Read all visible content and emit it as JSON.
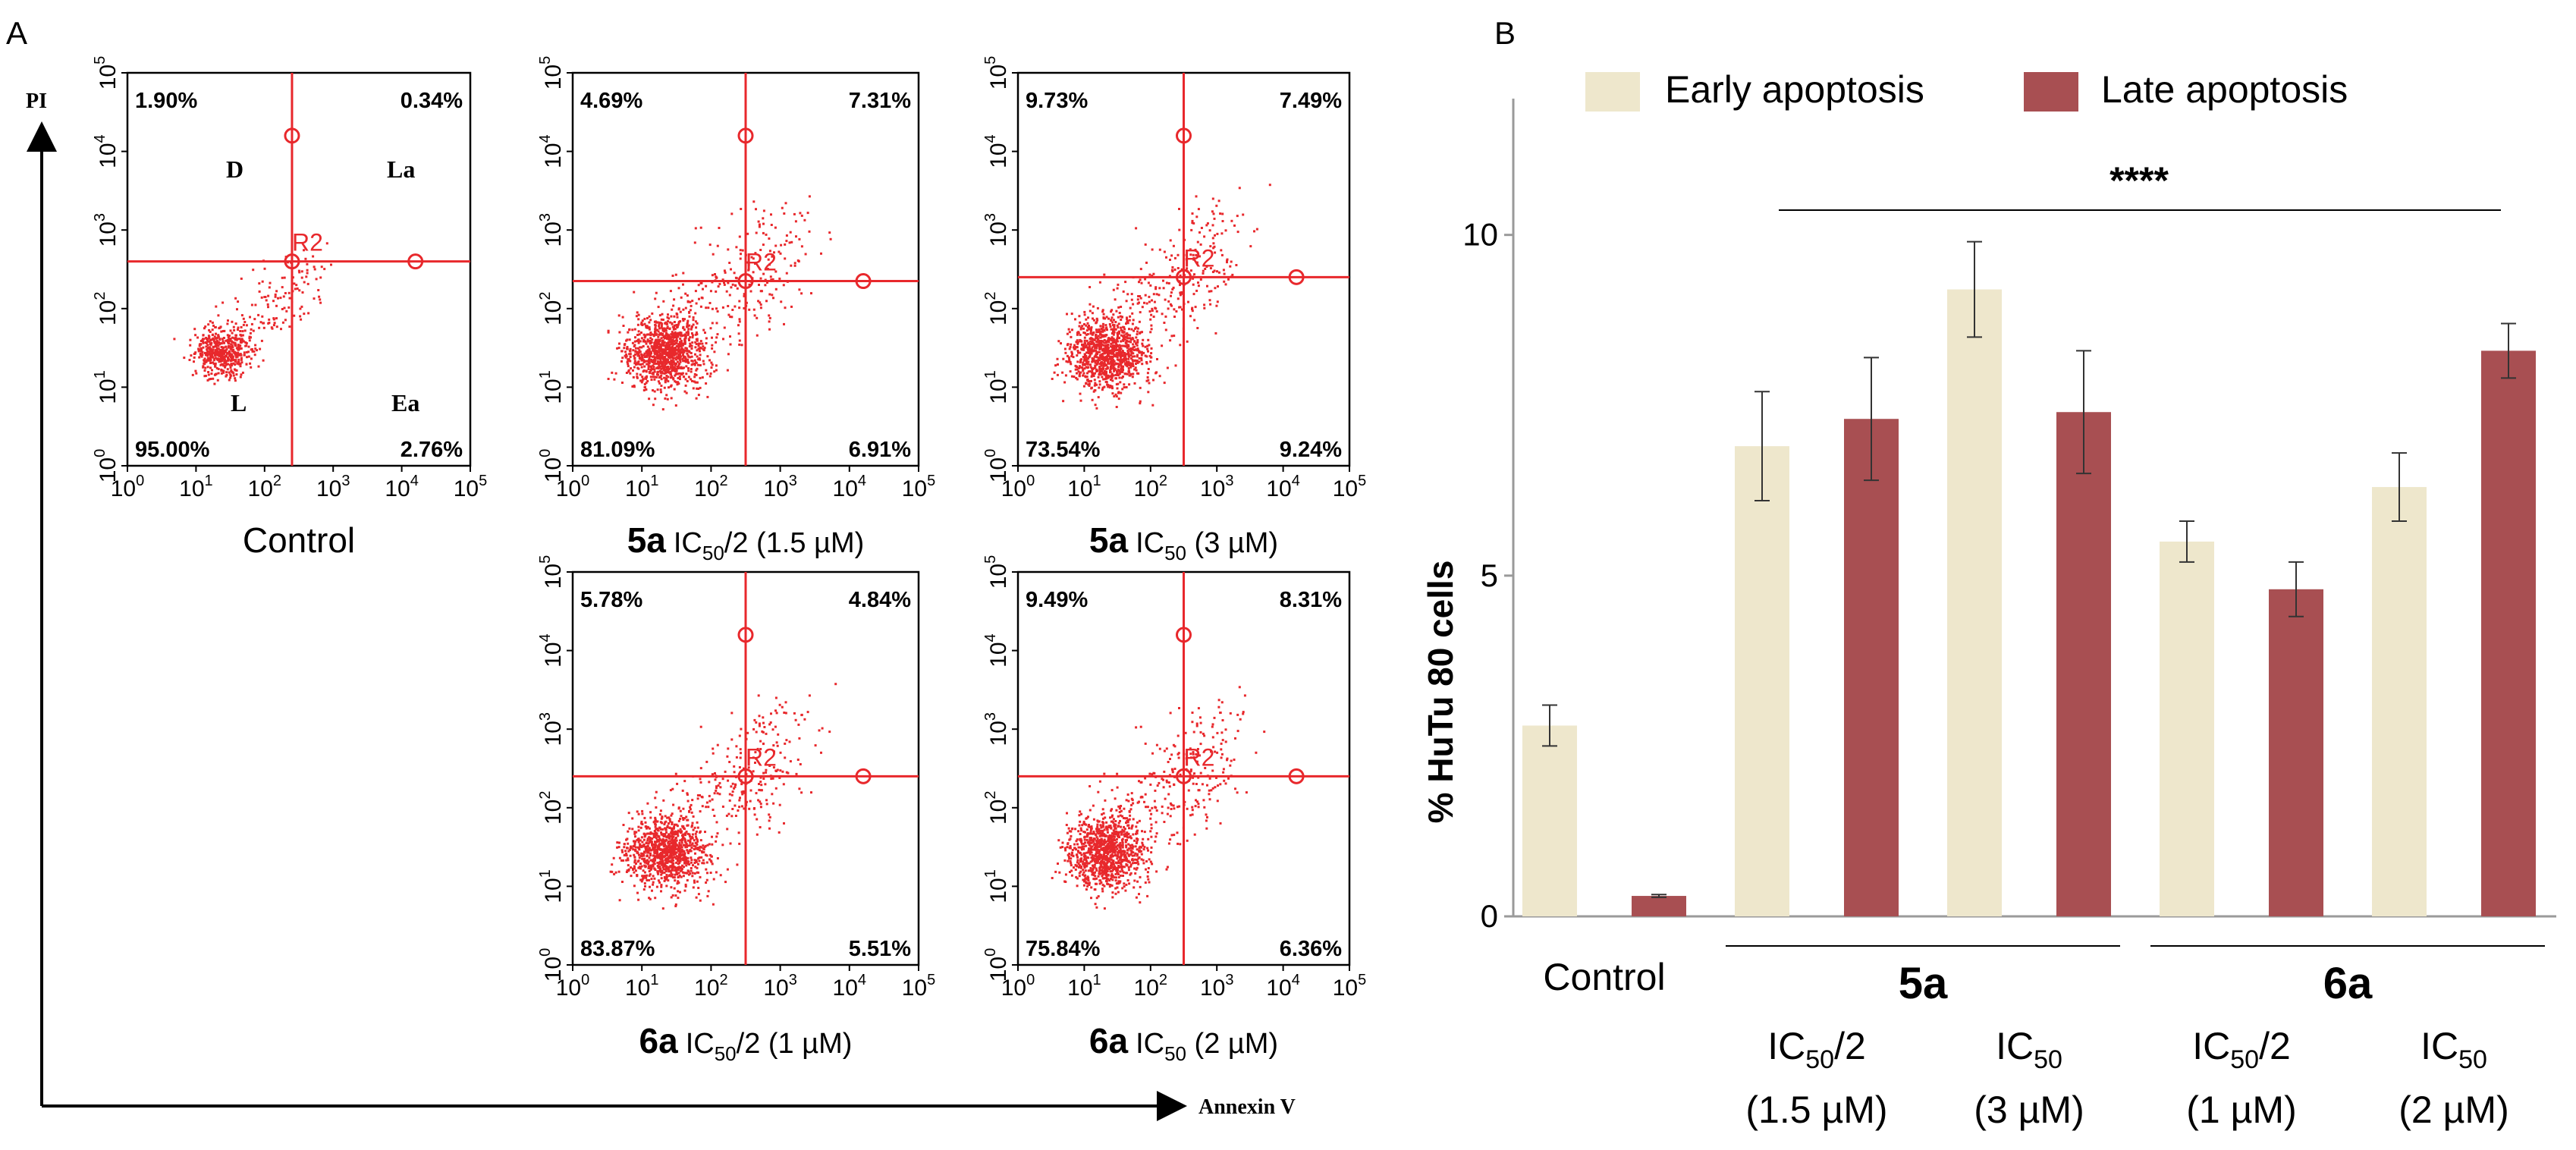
{
  "chart_data": [
    {
      "type": "scatter",
      "panel_label": "A",
      "x_axis_title": "Annexin V",
      "y_axis_title": "PI",
      "axis_scale": "log",
      "tick_labels": [
        "10",
        "10",
        "10",
        "10",
        "10",
        "10"
      ],
      "tick_exponents": [
        "0",
        "1",
        "2",
        "3",
        "4",
        "5"
      ],
      "gate_label": "R2",
      "quadrant_names": {
        "upper_left": "D",
        "upper_right": "La",
        "lower_left": "L",
        "lower_right": "Ea"
      },
      "plots": [
        {
          "title": "Control",
          "cross_x": 2.4,
          "cross_y": 2.6,
          "percent": {
            "upper_left": "1.90%",
            "upper_right": "0.34%",
            "lower_left": "95.00%",
            "lower_right": "2.76%"
          }
        },
        {
          "title_bold": "5a",
          "title_rest": "IC",
          "title_sub": "50",
          "title_tail": "/2 (1.5 µM)",
          "cross_x": 2.5,
          "cross_y": 2.35,
          "percent": {
            "upper_left": "4.69%",
            "upper_right": "7.31%",
            "lower_left": "81.09%",
            "lower_right": "6.91%"
          }
        },
        {
          "title_bold": "5a",
          "title_rest": "IC",
          "title_sub": "50",
          "title_tail": " (3 µM)",
          "cross_x": 2.5,
          "cross_y": 2.4,
          "percent": {
            "upper_left": "9.73%",
            "upper_right": "7.49%",
            "lower_left": "73.54%",
            "lower_right": "9.24%"
          }
        },
        {
          "title_bold": "6a",
          "title_rest": "IC",
          "title_sub": "50",
          "title_tail": "/2 (1 µM)",
          "cross_x": 2.5,
          "cross_y": 2.4,
          "percent": {
            "upper_left": "5.78%",
            "upper_right": "4.84%",
            "lower_left": "83.87%",
            "lower_right": "5.51%"
          }
        },
        {
          "title_bold": "6a",
          "title_rest": "IC",
          "title_sub": "50",
          "title_tail": " (2 µM)",
          "cross_x": 2.5,
          "cross_y": 2.4,
          "percent": {
            "upper_left": "9.49%",
            "upper_right": "8.31%",
            "lower_left": "75.84%",
            "lower_right": "6.36%"
          }
        }
      ]
    },
    {
      "type": "bar",
      "panel_label": "B",
      "ylabel": "% HuTu 80 cells",
      "ylim": [
        0,
        12
      ],
      "yticks": [
        "0",
        "5",
        "10"
      ],
      "legend": {
        "position": "top",
        "entries": [
          {
            "name": "Early apoptosis",
            "color": "#EEE7CC"
          },
          {
            "name": "Late apoptosis",
            "color": "#A84F52"
          }
        ]
      },
      "significance": "****",
      "categories": [
        "Control",
        "IC50/2 (1.5 µM)",
        "IC50 (3 µM)",
        "IC50/2 (1 µM)",
        "IC50 (2 µM)"
      ],
      "category_labels": [
        {
          "line1": "Control",
          "line2": ""
        },
        {
          "line1": "IC",
          "sub": "50",
          "tail": "/2",
          "line2": "(1.5 µM)"
        },
        {
          "line1": "IC",
          "sub": "50",
          "tail": "",
          "line2": "(3 µM)"
        },
        {
          "line1": "IC",
          "sub": "50",
          "tail": "/2",
          "line2": "(1 µM)"
        },
        {
          "line1": "IC",
          "sub": "50",
          "tail": "",
          "line2": "(2 µM)"
        }
      ],
      "groups": [
        {
          "name": "5a",
          "categories": [
            1,
            2
          ]
        },
        {
          "name": "6a",
          "categories": [
            3,
            4
          ]
        }
      ],
      "series": [
        {
          "name": "Early apoptosis",
          "color": "#EEE7CC",
          "values": [
            2.8,
            6.9,
            9.2,
            5.5,
            6.3
          ],
          "errors": [
            0.3,
            0.8,
            0.7,
            0.3,
            0.5
          ]
        },
        {
          "name": "Late apoptosis",
          "color": "#A84F52",
          "values": [
            0.3,
            7.3,
            7.4,
            4.8,
            8.3
          ],
          "errors": [
            0.02,
            0.9,
            0.9,
            0.4,
            0.4
          ]
        }
      ]
    }
  ]
}
